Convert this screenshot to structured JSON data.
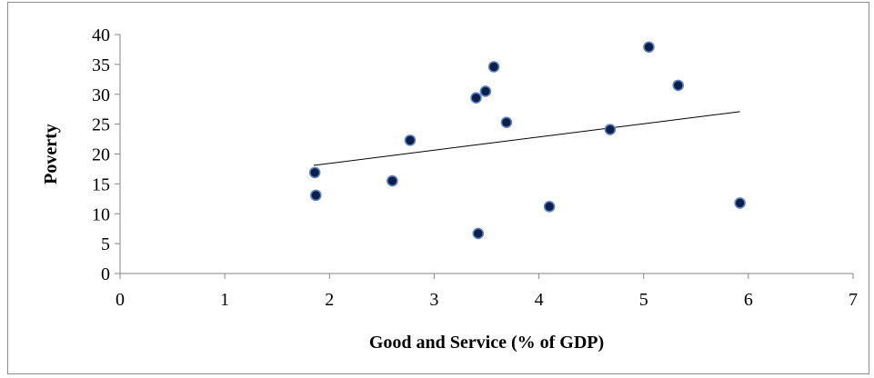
{
  "chart_data": {
    "type": "scatter",
    "title": "",
    "xlabel": "Good and Service (% of GDP)",
    "ylabel": "Poverty",
    "xlim": [
      0,
      7
    ],
    "ylim": [
      0,
      40
    ],
    "x_ticks": [
      0,
      1,
      2,
      3,
      4,
      5,
      6,
      7
    ],
    "y_ticks": [
      0,
      5,
      10,
      15,
      20,
      25,
      30,
      35,
      40
    ],
    "grid": false,
    "legend": "none",
    "marker_color": "#0b1f4a",
    "trendline": {
      "type": "linear",
      "x": [
        1.85,
        5.92
      ],
      "y": [
        18.1,
        27.1
      ],
      "color": "#000000"
    },
    "points": [
      {
        "x": 1.86,
        "y": 16.9
      },
      {
        "x": 1.87,
        "y": 13.1
      },
      {
        "x": 2.6,
        "y": 15.5
      },
      {
        "x": 2.77,
        "y": 22.3
      },
      {
        "x": 3.4,
        "y": 29.4
      },
      {
        "x": 3.42,
        "y": 6.7
      },
      {
        "x": 3.49,
        "y": 30.5
      },
      {
        "x": 3.57,
        "y": 34.6
      },
      {
        "x": 3.69,
        "y": 25.3
      },
      {
        "x": 4.1,
        "y": 11.2
      },
      {
        "x": 4.68,
        "y": 24.1
      },
      {
        "x": 5.05,
        "y": 37.9
      },
      {
        "x": 5.33,
        "y": 31.5
      },
      {
        "x": 5.92,
        "y": 11.8
      }
    ]
  }
}
